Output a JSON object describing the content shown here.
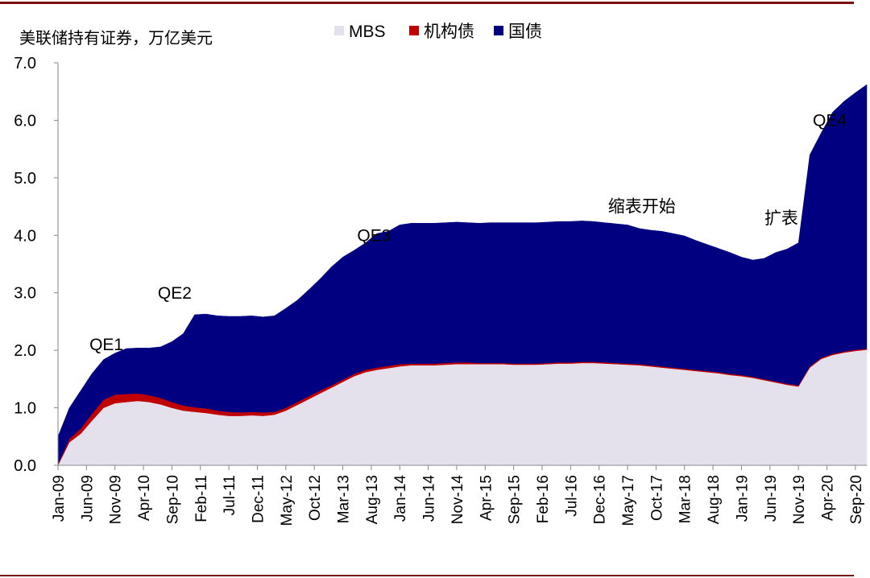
{
  "chart_data": {
    "type": "area",
    "stacked": true,
    "ylabel": "美联储持有证券，万亿美元",
    "ylim": [
      0,
      7
    ],
    "yticks": [
      "0.0",
      "1.0",
      "2.0",
      "3.0",
      "4.0",
      "5.0",
      "6.0",
      "7.0"
    ],
    "x_tick_labels": [
      "Jan-09",
      "Jun-09",
      "Nov-09",
      "Apr-10",
      "Sep-10",
      "Feb-11",
      "Jul-11",
      "Dec-11",
      "May-12",
      "Oct-12",
      "Mar-13",
      "Aug-13",
      "Jan-14",
      "Jun-14",
      "Nov-14",
      "Apr-15",
      "Sep-15",
      "Feb-16",
      "Jul-16",
      "Dec-16",
      "May-17",
      "Oct-17",
      "Mar-18",
      "Aug-18",
      "Jan-19",
      "Jun-19",
      "Nov-19",
      "Apr-20",
      "Sep-20"
    ],
    "x_points_month_index": [
      0,
      2,
      4,
      6,
      8,
      10,
      12,
      14,
      16,
      18,
      20,
      22,
      24,
      26,
      28,
      30,
      32,
      34,
      36,
      38,
      40,
      42,
      44,
      46,
      48,
      50,
      52,
      54,
      56,
      58,
      60,
      62,
      64,
      66,
      68,
      70,
      72,
      74,
      76,
      78,
      80,
      82,
      84,
      86,
      88,
      90,
      92,
      94,
      96,
      98,
      100,
      102,
      104,
      106,
      108,
      110,
      112,
      114,
      116,
      118,
      120,
      122,
      124,
      126,
      128,
      130,
      132,
      134,
      136,
      138,
      140,
      142
    ],
    "legend_position": "top-center",
    "series": [
      {
        "name": "MBS",
        "color": "#e4e0ec",
        "values": [
          0.0,
          0.4,
          0.55,
          0.78,
          1.0,
          1.08,
          1.1,
          1.12,
          1.1,
          1.06,
          1.0,
          0.95,
          0.93,
          0.91,
          0.88,
          0.86,
          0.86,
          0.87,
          0.86,
          0.88,
          0.95,
          1.05,
          1.15,
          1.25,
          1.35,
          1.45,
          1.55,
          1.62,
          1.66,
          1.69,
          1.72,
          1.74,
          1.74,
          1.74,
          1.75,
          1.76,
          1.76,
          1.76,
          1.76,
          1.76,
          1.75,
          1.75,
          1.75,
          1.76,
          1.77,
          1.77,
          1.78,
          1.78,
          1.77,
          1.76,
          1.75,
          1.74,
          1.72,
          1.7,
          1.68,
          1.66,
          1.64,
          1.62,
          1.6,
          1.57,
          1.55,
          1.52,
          1.48,
          1.44,
          1.4,
          1.37,
          1.7,
          1.85,
          1.92,
          1.96,
          1.99,
          2.01
        ]
      },
      {
        "name": "机构债",
        "color": "#c00000",
        "values": [
          0.02,
          0.06,
          0.09,
          0.12,
          0.14,
          0.15,
          0.14,
          0.13,
          0.12,
          0.11,
          0.1,
          0.09,
          0.08,
          0.08,
          0.07,
          0.07,
          0.06,
          0.06,
          0.06,
          0.05,
          0.05,
          0.05,
          0.05,
          0.05,
          0.04,
          0.04,
          0.04,
          0.04,
          0.04,
          0.04,
          0.04,
          0.03,
          0.03,
          0.03,
          0.03,
          0.03,
          0.03,
          0.02,
          0.02,
          0.02,
          0.02,
          0.02,
          0.02,
          0.02,
          0.02,
          0.02,
          0.02,
          0.02,
          0.02,
          0.02,
          0.02,
          0.02,
          0.02,
          0.02,
          0.02,
          0.02,
          0.02,
          0.02,
          0.02,
          0.02,
          0.02,
          0.02,
          0.02,
          0.02,
          0.02,
          0.02,
          0.02,
          0.02,
          0.02,
          0.02,
          0.02,
          0.02
        ]
      },
      {
        "name": "国债",
        "color": "#000080",
        "values": [
          0.48,
          0.54,
          0.66,
          0.7,
          0.7,
          0.72,
          0.79,
          0.79,
          0.82,
          0.89,
          1.05,
          1.25,
          1.61,
          1.64,
          1.65,
          1.66,
          1.67,
          1.67,
          1.66,
          1.67,
          1.73,
          1.77,
          1.85,
          1.94,
          2.06,
          2.13,
          2.15,
          2.21,
          2.33,
          2.34,
          2.42,
          2.44,
          2.44,
          2.44,
          2.44,
          2.44,
          2.43,
          2.43,
          2.44,
          2.44,
          2.45,
          2.45,
          2.45,
          2.45,
          2.45,
          2.45,
          2.45,
          2.44,
          2.43,
          2.42,
          2.41,
          2.36,
          2.35,
          2.35,
          2.33,
          2.31,
          2.25,
          2.2,
          2.15,
          2.11,
          2.05,
          2.03,
          2.1,
          2.24,
          2.34,
          2.48,
          3.68,
          3.91,
          4.2,
          4.35,
          4.47,
          4.59
        ]
      }
    ],
    "annotations": [
      {
        "text": "QE1",
        "month": 8.5,
        "y": 2.0
      },
      {
        "text": "QE2",
        "month": 20.5,
        "y": 2.9
      },
      {
        "text": "QE3",
        "month": 55.5,
        "y": 3.9
      },
      {
        "text": "缩表开始",
        "month": 102.5,
        "y": 4.4
      },
      {
        "text": "扩表",
        "month": 127,
        "y": 4.2
      },
      {
        "text": "QE4",
        "month": 135.5,
        "y": 5.9
      }
    ]
  }
}
